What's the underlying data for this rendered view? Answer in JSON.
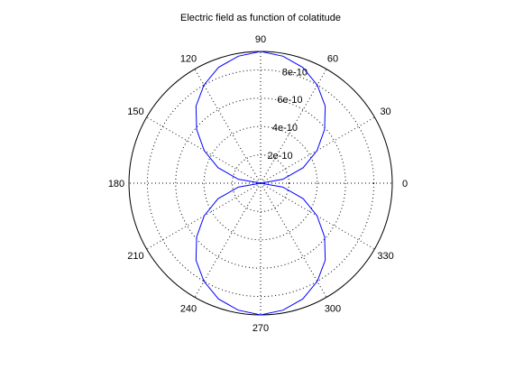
{
  "chart_data": {
    "type": "polar",
    "title": "Electric field as function of colatitude",
    "angle_unit": "degrees",
    "angle_ticks": [
      0,
      30,
      60,
      90,
      120,
      150,
      180,
      210,
      240,
      270,
      300,
      330
    ],
    "angle_tick_labels": [
      "0",
      "30",
      "60",
      "90",
      "120",
      "150",
      "180",
      "210",
      "240",
      "270",
      "300",
      "330"
    ],
    "rlim": [
      0,
      9.3e-10
    ],
    "r_ticks": [
      2e-10,
      4e-10,
      6e-10,
      8e-10
    ],
    "r_tick_labels": [
      "2e-10",
      "4e-10",
      "6e-10",
      "8e-10"
    ],
    "grid": true,
    "series": [
      {
        "color": "#0000ff",
        "theta": [
          0,
          10,
          20,
          30,
          40,
          50,
          60,
          70,
          80,
          90,
          100,
          110,
          120,
          130,
          140,
          150,
          160,
          170,
          180,
          190,
          200,
          210,
          220,
          230,
          240,
          250,
          260,
          270,
          280,
          290,
          300,
          310,
          320,
          330,
          340,
          350,
          360
        ],
        "r": [
          0,
          1.6e-10,
          3.2e-10,
          4.6e-10,
          5.9e-10,
          7.1e-10,
          8e-10,
          8.7e-10,
          9.1e-10,
          9.3e-10,
          9.1e-10,
          8.7e-10,
          8e-10,
          7.1e-10,
          5.9e-10,
          4.6e-10,
          3.2e-10,
          1.6e-10,
          0,
          1.6e-10,
          3.2e-10,
          4.6e-10,
          5.9e-10,
          7.1e-10,
          8e-10,
          8.7e-10,
          9.1e-10,
          9.3e-10,
          9.1e-10,
          8.7e-10,
          8e-10,
          7.1e-10,
          5.9e-10,
          4.6e-10,
          3.2e-10,
          1.6e-10,
          0
        ]
      }
    ]
  }
}
